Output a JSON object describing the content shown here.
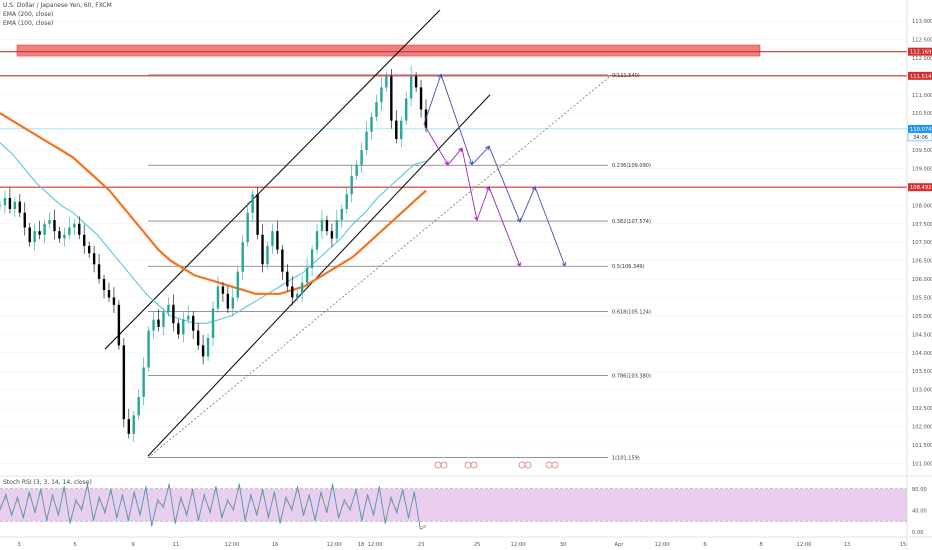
{
  "header": {
    "symbol": "U.S. Dollar / Japanese Yen, 60, FXCM",
    "ema1": "EMA (200, close)",
    "ema2": "EMA (100, close)"
  },
  "rsi": {
    "label": "Stoch RSI (3, 3, 14, 14, close)",
    "upper": 80,
    "lower": 20,
    "tick_labels": [
      "80.00",
      "40.00",
      "0.00"
    ]
  },
  "colors": {
    "ema200": "#f4731f",
    "ema100": "#5bc8e0",
    "up": "#26a69a",
    "down": "#000000",
    "resistance": "#d32f2f",
    "zone": "#f08080",
    "cyan_line": "#80deea",
    "blue_path": "#3f51b5",
    "purple_path": "#9c27b0",
    "rsi_band": "#e1bee7",
    "rsi_k": "#2196f3",
    "rsi_d": "#ff9800"
  },
  "chart_data": {
    "type": "candlestick",
    "ylim": [
      100.9,
      113.3
    ],
    "y_ticks": [
      113.0,
      112.5,
      112.0,
      111.5,
      111.0,
      110.5,
      110.0,
      109.5,
      109.0,
      108.5,
      108.0,
      107.5,
      107.0,
      106.5,
      106.0,
      105.5,
      105.0,
      104.5,
      104.0,
      103.5,
      103.0,
      102.5,
      102.0,
      101.5,
      101.0
    ],
    "x_ticks": [
      "3",
      "5",
      "9",
      "11",
      "12:00",
      "16",
      "12:00",
      "18",
      "12:00",
      "23",
      "25",
      "12:00",
      "30",
      "Apr",
      "12:00",
      "6",
      "8",
      "12:00",
      "13",
      "15"
    ],
    "price_labels": [
      {
        "value": 112.169,
        "text": "112.169",
        "bg": "#d32f2f"
      },
      {
        "value": 111.514,
        "text": "111.514",
        "bg": "#d32f2f"
      },
      {
        "value": 110.074,
        "text": "110.074",
        "bg": "#2196f3",
        "sub": "34:06"
      },
      {
        "value": 108.492,
        "text": "108.492",
        "bg": "#d32f2f"
      }
    ],
    "fib_levels": [
      {
        "ratio": "0",
        "value": 111.54,
        "label": "0(111.540)"
      },
      {
        "ratio": "0.236",
        "value": 109.09,
        "label": "0.236(109.090)"
      },
      {
        "ratio": "0.382",
        "value": 107.574,
        "label": "0.382(107.574)"
      },
      {
        "ratio": "0.5",
        "value": 106.349,
        "label": "0.5(106.349)"
      },
      {
        "ratio": "0.618",
        "value": 105.124,
        "label": "0.618(105.124)"
      },
      {
        "ratio": "0.786",
        "value": 103.38,
        "label": "0.786(103.380)"
      },
      {
        "ratio": "1",
        "value": 101.159,
        "label": "1(101.159)"
      }
    ],
    "resistance_lines": [
      112.169,
      111.514,
      108.492
    ],
    "resistance_zone": [
      112.05,
      112.35
    ],
    "current_price": 110.074,
    "close_path": [
      108.0,
      108.2,
      107.9,
      108.1,
      107.8,
      107.4,
      107.0,
      107.3,
      107.2,
      107.5,
      107.6,
      107.3,
      107.1,
      107.2,
      107.4,
      107.5,
      107.2,
      106.9,
      106.7,
      106.4,
      106.0,
      105.7,
      105.5,
      105.3,
      104.2,
      102.2,
      101.8,
      102.3,
      102.8,
      103.6,
      104.6,
      104.9,
      104.7,
      105.1,
      105.3,
      104.8,
      104.5,
      104.9,
      105.0,
      104.6,
      104.2,
      103.9,
      104.4,
      105.2,
      105.8,
      105.6,
      105.2,
      105.5,
      106.2,
      107.0,
      107.8,
      108.3,
      107.2,
      106.4,
      106.9,
      107.3,
      106.8,
      106.2,
      105.8,
      105.5,
      105.6,
      105.9,
      106.3,
      106.8,
      107.3,
      107.6,
      107.3,
      107.1,
      107.6,
      107.9,
      108.3,
      108.8,
      109.1,
      109.5,
      110.0,
      110.4,
      110.8,
      111.2,
      111.5,
      110.3,
      109.8,
      110.3,
      110.9,
      111.5,
      111.2,
      110.6,
      110.1
    ],
    "ema200_path": [
      110.5,
      110.3,
      110.1,
      109.9,
      109.7,
      109.5,
      109.3,
      109.0,
      108.7,
      108.4,
      108.0,
      107.6,
      107.2,
      106.8,
      106.5,
      106.3,
      106.1,
      106.0,
      105.9,
      105.8,
      105.7,
      105.6,
      105.6,
      105.6,
      105.7,
      105.8,
      106.0,
      106.2,
      106.4,
      106.6,
      106.9,
      107.2,
      107.5,
      107.8,
      108.1,
      108.4
    ],
    "ema100_path": [
      109.7,
      109.4,
      109.0,
      108.6,
      108.3,
      108.0,
      107.8,
      107.5,
      107.2,
      106.8,
      106.4,
      106.0,
      105.6,
      105.3,
      105.0,
      104.9,
      104.8,
      104.8,
      104.9,
      105.0,
      105.2,
      105.4,
      105.6,
      105.8,
      106.0,
      106.2,
      106.5,
      106.8,
      107.1,
      107.5,
      107.8,
      108.2,
      108.5,
      108.8,
      109.1,
      109.2
    ],
    "blue_path": [
      [
        424,
        110.2
      ],
      [
        441,
        111.55
      ],
      [
        472,
        109.1
      ],
      [
        489,
        109.6
      ],
      [
        520,
        107.55
      ],
      [
        535,
        108.5
      ],
      [
        565,
        106.35
      ]
    ],
    "purple_path": [
      [
        424,
        110.2
      ],
      [
        448,
        109.1
      ],
      [
        462,
        109.55
      ],
      [
        477,
        107.6
      ],
      [
        489,
        108.5
      ],
      [
        520,
        106.35
      ]
    ],
    "channel_upper": [
      [
        105,
        104.1
      ],
      [
        440,
        113.3
      ]
    ],
    "channel_lower": [
      [
        148,
        101.2
      ],
      [
        490,
        111.0
      ]
    ],
    "dotted_trend": [
      [
        148,
        101.15
      ],
      [
        610,
        111.5
      ]
    ],
    "rsi_k": [
      40,
      70,
      30,
      65,
      25,
      75,
      35,
      80,
      20,
      70,
      30,
      85,
      15,
      60,
      40,
      90,
      20,
      65,
      35,
      80,
      25,
      70,
      20,
      75,
      30,
      85,
      10,
      60,
      45,
      90,
      15,
      65,
      30,
      80,
      20,
      70,
      35,
      85,
      25,
      60,
      40,
      90,
      20,
      70,
      30,
      80,
      25,
      75,
      15,
      65,
      40,
      85,
      30,
      70,
      20,
      75,
      35,
      90,
      25,
      60,
      40,
      80,
      20,
      70,
      30,
      85,
      15,
      65,
      35,
      80,
      25,
      75,
      5,
      10
    ],
    "rsi_d": [
      45,
      65,
      35,
      60,
      30,
      70,
      40,
      75,
      25,
      65,
      35,
      80,
      20,
      55,
      45,
      85,
      25,
      60,
      40,
      75,
      30,
      65,
      25,
      70,
      35,
      80,
      15,
      55,
      50,
      85,
      20,
      60,
      35,
      75,
      25,
      65,
      40,
      80,
      30,
      55,
      45,
      85,
      25,
      65,
      35,
      75,
      30,
      70,
      20,
      60,
      45,
      80,
      35,
      65,
      25,
      70,
      40,
      85,
      30,
      55,
      45,
      75,
      25,
      65,
      35,
      80,
      20,
      60,
      40,
      75,
      30,
      70,
      10,
      12
    ]
  }
}
